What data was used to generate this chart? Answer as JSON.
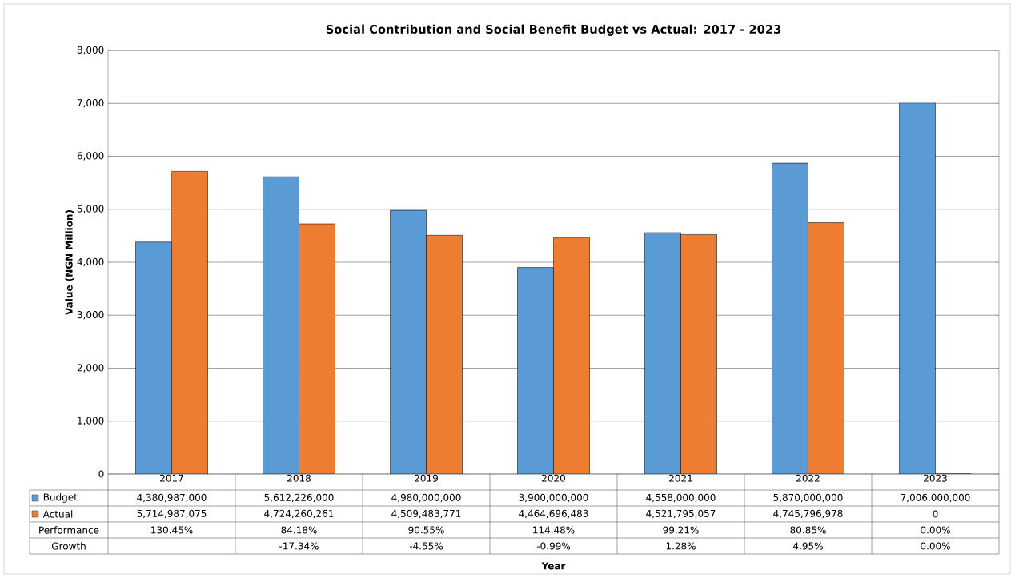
{
  "chart_data": {
    "type": "bar",
    "title": "Social Contribution and Social Benefit Budget vs Actual: 2017 - 2023",
    "ylabel": "Value (NGN Million)",
    "categories": [
      "2017",
      "2018",
      "2019",
      "2020",
      "2021",
      "2022",
      "2023"
    ],
    "series": [
      {
        "name": "Budget",
        "color": "#5b9bd5",
        "values": [
          4381,
          5612,
          4980,
          3900,
          4558,
          5870,
          7006
        ]
      },
      {
        "name": "Actual",
        "color": "#ed7d31",
        "values": [
          5715,
          4724,
          4509,
          4465,
          4522,
          4746,
          0
        ]
      }
    ],
    "ylim": [
      0,
      8000
    ],
    "yticks": [
      0,
      {
        "value": 1000,
        "label": "1,000"
      },
      {
        "value": 2000,
        "label": "2,000"
      },
      {
        "value": 3000,
        "label": "3,000"
      },
      {
        "value": 4000,
        "label": "4,000"
      },
      {
        "value": 5000,
        "label": "5,000"
      },
      {
        "value": 6000,
        "label": "6,000"
      },
      {
        "value": 7000,
        "label": "7,000"
      },
      {
        "value": 8000,
        "label": "8,000"
      }
    ],
    "grid": "y",
    "legend": "bottom",
    "annotations": [
      "4,380,987,000",
      "5,612,226,000",
      "4,980,000,000",
      "3,900,000,000",
      "4,558,000,000",
      "5,870,000,000",
      "7,006,000,000",
      "5,714,987,075",
      "4,724,260,261",
      "4,509,483,771",
      "4,464,696,483",
      "4,521,795,057",
      "4,745,796,978",
      "0",
      "Performance",
      "130.45%",
      "84.18%",
      "90.55%",
      "114.48%",
      "99.21%",
      "80.85%",
      "0.00%",
      "Growth",
      "-17.34%",
      "-4.55%",
      "-0.99%",
      "1.28%",
      "4.95%",
      "0.00%",
      "Year"
    ]
  }
}
